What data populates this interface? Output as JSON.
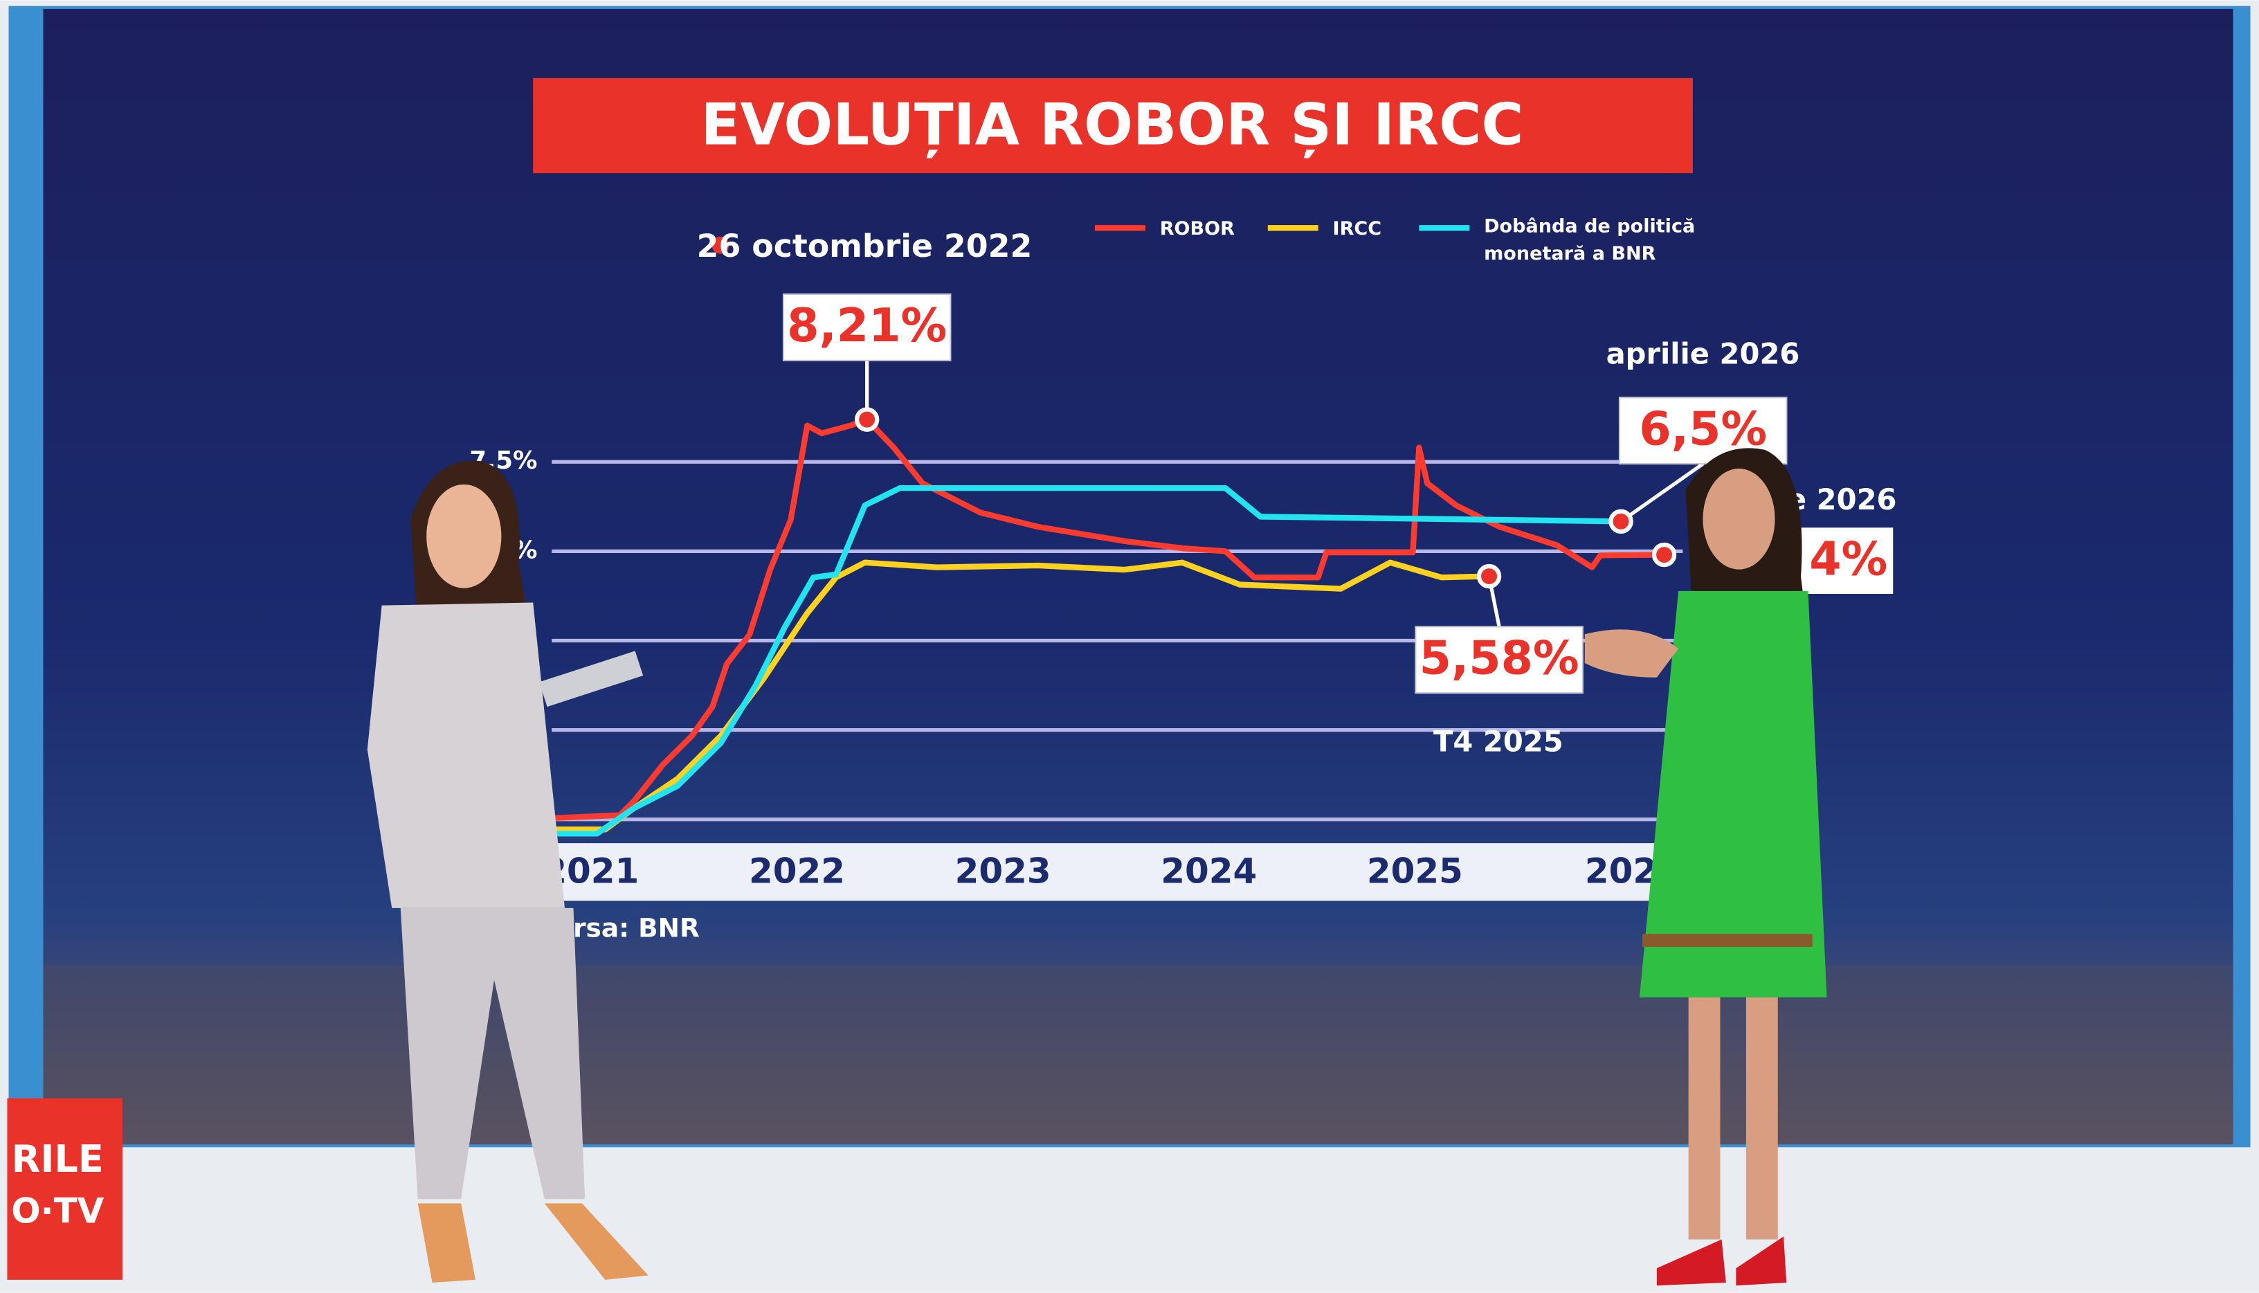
{
  "chart_data": {
    "type": "line",
    "title": "EVOLUȚIA ROBOR ȘI IRCC",
    "xlim": [
      2020.81,
      2026.3
    ],
    "xticks": [
      2021,
      2022,
      2023,
      2024,
      2025,
      {
        "value": 2026,
        "label": "202"
      }
    ],
    "ylim": [
      1.1,
      8.5
    ],
    "yticks": [
      {
        "value": 7.5,
        "label": "7,5%"
      },
      {
        "value": 6,
        "label": "%"
      },
      {
        "value": 4.5,
        "label": null
      },
      {
        "value": 3,
        "label": null
      },
      {
        "value": 1.5,
        "label": null
      }
    ],
    "grid": true,
    "series": [
      {
        "name": "ROBOR",
        "color": "#ff3b2f",
        "x": [
          2020.81,
          2021.14,
          2021.21,
          2021.35,
          2021.49,
          2021.59,
          2021.66,
          2021.77,
          2021.87,
          2021.97,
          2022.05,
          2022.12,
          2022.26,
          2022.34,
          2022.47,
          2022.61,
          2022.89,
          2023.17,
          2023.59,
          2023.87,
          2024.08,
          2024.22,
          2024.53,
          2024.57,
          2024.99,
          2025.02,
          2025.06,
          2025.2,
          2025.41,
          2025.69,
          2025.86,
          2025.9,
          2026.21
        ],
        "values": [
          1.52,
          1.57,
          1.81,
          2.42,
          2.9,
          3.39,
          4.11,
          4.6,
          5.69,
          6.53,
          8.11,
          7.98,
          8.11,
          8.21,
          7.74,
          7.14,
          6.65,
          6.41,
          6.17,
          6.05,
          6.0,
          5.56,
          5.56,
          5.98,
          5.98,
          7.74,
          7.14,
          6.77,
          6.41,
          6.1,
          5.73,
          5.93,
          5.94
        ],
        "value_labels": [
          null,
          null,
          null,
          null,
          null,
          null,
          null,
          null,
          null,
          null,
          null,
          null,
          null,
          "8,21%",
          null,
          null,
          null,
          null,
          null,
          null,
          null,
          null,
          null,
          null,
          null,
          null,
          null,
          null,
          null,
          null,
          null,
          null,
          null
        ]
      },
      {
        "name": "IRCC",
        "color": "#ffd21f",
        "x": [
          2020.81,
          2021.07,
          2021.21,
          2021.42,
          2021.63,
          2021.84,
          2022.05,
          2022.19,
          2022.33,
          2022.68,
          2023.17,
          2023.59,
          2023.87,
          2024.15,
          2024.64,
          2024.88,
          2025.13,
          2025.36
        ],
        "values": [
          1.33,
          1.33,
          1.69,
          2.18,
          2.9,
          3.87,
          4.96,
          5.56,
          5.81,
          5.73,
          5.76,
          5.69,
          5.81,
          5.44,
          5.37,
          5.81,
          5.56,
          5.58
        ],
        "value_labels": [
          null,
          null,
          null,
          null,
          null,
          null,
          null,
          null,
          null,
          null,
          null,
          null,
          null,
          null,
          null,
          null,
          null,
          "5,58%"
        ]
      },
      {
        "name": "Dobânda de politică monetară a BNR",
        "color": "#22e3f0",
        "x": [
          2020.81,
          2021.03,
          2021.21,
          2021.42,
          2021.63,
          2021.8,
          2021.94,
          2022.08,
          2022.19,
          2022.33,
          2022.5,
          2024.08,
          2024.25,
          2026.0
        ],
        "values": [
          1.26,
          1.26,
          1.69,
          2.06,
          2.78,
          3.75,
          4.72,
          5.56,
          5.61,
          6.77,
          7.06,
          7.06,
          6.58,
          6.5
        ],
        "value_labels": [
          null,
          null,
          null,
          null,
          null,
          null,
          null,
          null,
          null,
          null,
          null,
          null,
          null,
          "6,5%"
        ]
      }
    ],
    "annotations": [
      "26 octombrie 2022",
      "aprilie 2026",
      "T4 2025",
      "ie 2026",
      "4%"
    ],
    "source": "ursa: BNR"
  },
  "channel_logo": [
    "RILE",
    "O·TV"
  ]
}
